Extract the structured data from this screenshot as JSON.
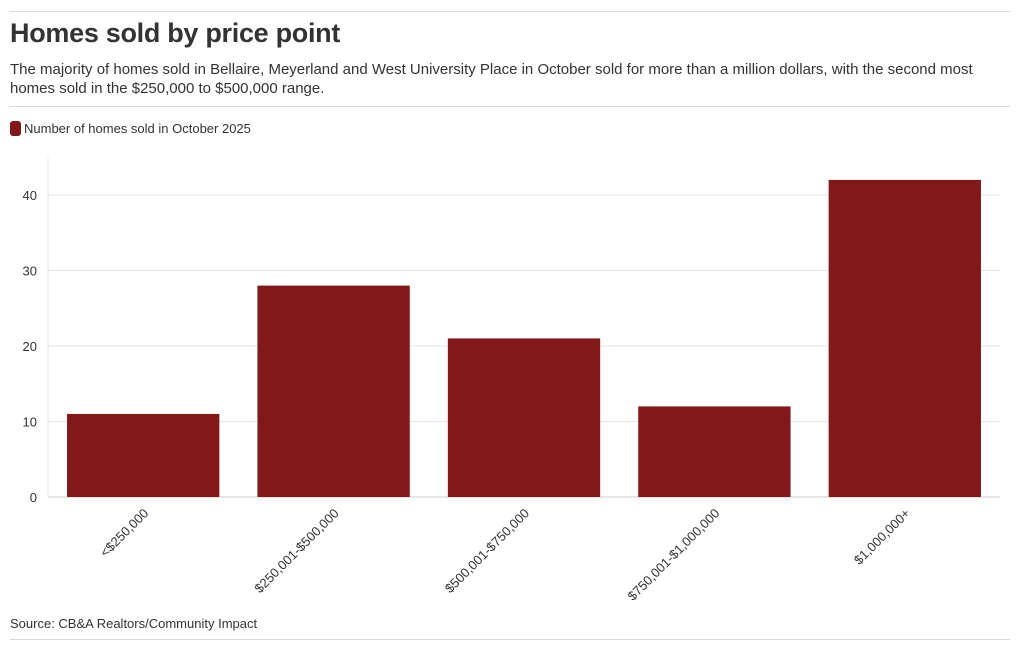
{
  "header": {
    "title": "Homes sold by price point",
    "subtitle": "The majority of homes sold in Bellaire, Meyerland and West University Place in October sold for more than a million dollars, with the second most homes sold in the $250,000 to $500,000 range."
  },
  "footer": {
    "source": "Source: CB&A Realtors/Community Impact"
  },
  "colors": {
    "bar": "#821919",
    "grid": "#e6e6e6",
    "text": "#333333"
  },
  "chart_data": {
    "type": "bar",
    "title": "Homes sold by price point",
    "xlabel": "",
    "ylabel": "",
    "categories": [
      "<$250,000",
      "$250,001-$500,000",
      "$500,001-$750,000",
      "$750,001-$1,000,000",
      "$1,000,000+"
    ],
    "series": [
      {
        "name": "Number of homes sold in October 2025",
        "values": [
          11,
          28,
          21,
          12,
          42
        ]
      }
    ],
    "ylim": [
      0,
      45
    ],
    "yticks": [
      0,
      10,
      20,
      30,
      40
    ],
    "grid": true,
    "legend_position": "top-left"
  }
}
